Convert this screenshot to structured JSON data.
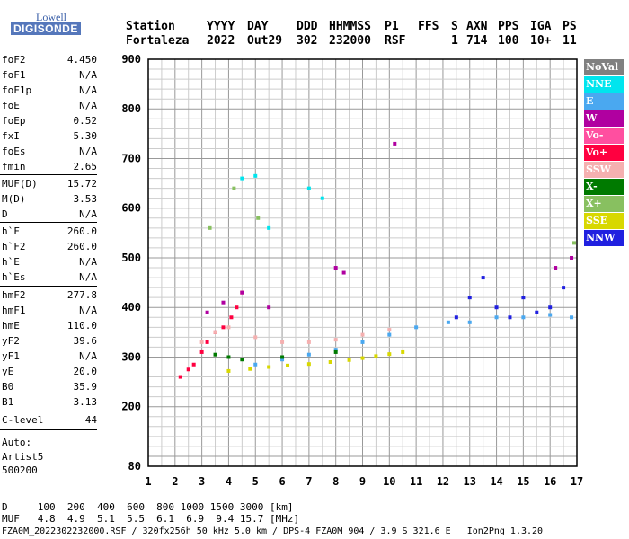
{
  "logo": {
    "top": "Lowell",
    "bottom": "DIGISONDE"
  },
  "header": {
    "labels": [
      "Station",
      "YYYY",
      "DAY",
      "DDD",
      "HHMMSS",
      "P1",
      "FFS",
      "S",
      "AXN",
      "PPS",
      "IGA",
      "PS"
    ],
    "values": [
      "Fortaleza",
      "2022",
      "Out29",
      "302",
      "232000",
      "RSF",
      "",
      "1",
      "714",
      "100",
      "10+",
      "11"
    ]
  },
  "params": [
    {
      "name": "foF2",
      "value": "4.450"
    },
    {
      "name": "foF1",
      "value": "N/A"
    },
    {
      "name": "foF1p",
      "value": "N/A"
    },
    {
      "name": "foE",
      "value": "N/A"
    },
    {
      "name": "foEp",
      "value": "0.52"
    },
    {
      "name": "fxI",
      "value": "5.30"
    },
    {
      "name": "foEs",
      "value": "N/A"
    },
    {
      "name": "fmin",
      "value": "2.65"
    },
    {
      "name": "MUF(D)",
      "value": "15.72"
    },
    {
      "name": "M(D)",
      "value": "3.53"
    },
    {
      "name": "D",
      "value": "N/A"
    },
    {
      "name": "h`F",
      "value": "260.0"
    },
    {
      "name": "h`F2",
      "value": "260.0"
    },
    {
      "name": "h`E",
      "value": "N/A"
    },
    {
      "name": "h`Es",
      "value": "N/A"
    },
    {
      "name": "hmF2",
      "value": "277.8"
    },
    {
      "name": "hmF1",
      "value": "N/A"
    },
    {
      "name": "hmE",
      "value": "110.0"
    },
    {
      "name": "yF2",
      "value": "39.6"
    },
    {
      "name": "yF1",
      "value": "N/A"
    },
    {
      "name": "yE",
      "value": "20.0"
    },
    {
      "name": "B0",
      "value": "35.9"
    },
    {
      "name": "B1",
      "value": "3.13"
    },
    {
      "name": "C-level",
      "value": "44"
    }
  ],
  "auto": {
    "line1": "Auto:",
    "line2": "Artist5",
    "line3": "500200"
  },
  "legend": [
    {
      "label": "NoVal",
      "color": "#808080"
    },
    {
      "label": "NNE",
      "color": "#00e5ee"
    },
    {
      "label": "E",
      "color": "#4aa8f0"
    },
    {
      "label": "W",
      "color": "#b000a0"
    },
    {
      "label": "Vo-",
      "color": "#ff4fa0"
    },
    {
      "label": "Vo+",
      "color": "#ff0040"
    },
    {
      "label": "SSW",
      "color": "#f5b0b0"
    },
    {
      "label": "X-",
      "color": "#007a00"
    },
    {
      "label": "X+",
      "color": "#88c060"
    },
    {
      "label": "SSE",
      "color": "#d8d800"
    },
    {
      "label": "NNW",
      "color": "#2020e0"
    }
  ],
  "footer": {
    "d_row": "D     100  200  400  600  800 1000 1500 3000 [km]",
    "muf_row": "MUF   4.8  4.9  5.1  5.5  6.1  6.9  9.4 15.7 [MHz]",
    "info_row": "FZA0M_2022302232000.RSF / 320fx256h 50 kHz 5.0 km / DPS-4 FZA0M 904 / 3.9 S 321.6 E   Ion2Png 1.3.20"
  },
  "chart_data": {
    "type": "scatter",
    "xlim": [
      1,
      17
    ],
    "ylim": [
      80,
      900
    ],
    "xticks": [
      "1",
      "2",
      "3",
      "4",
      "5",
      "6",
      "7",
      "8",
      "9",
      "10",
      "11",
      "12",
      "13",
      "14",
      "15",
      "16",
      "17"
    ],
    "yticks": [
      "80",
      "200",
      "300",
      "400",
      "500",
      "600",
      "700",
      "800",
      "900"
    ],
    "grid": true,
    "series": [
      {
        "color": "#ff0040",
        "x": [
          2.2,
          2.5,
          2.7,
          3.0,
          3.2,
          3.5,
          3.8,
          4.1,
          4.3,
          4.5
        ],
        "y": [
          260,
          275,
          285,
          310,
          330,
          350,
          360,
          380,
          400,
          430
        ]
      },
      {
        "color": "#d8d800",
        "x": [
          4.0,
          4.8,
          5.5,
          6.2,
          7.0,
          7.8,
          8.5,
          9.0,
          9.5,
          10.0,
          10.5
        ],
        "y": [
          272,
          276,
          280,
          283,
          286,
          290,
          294,
          298,
          302,
          306,
          310
        ]
      },
      {
        "color": "#4aa8f0",
        "x": [
          5.0,
          6.0,
          7.0,
          8.0,
          9.0,
          10.0,
          11.0,
          12.2,
          13.0,
          14.0,
          15.0,
          16.0,
          16.8
        ],
        "y": [
          285,
          295,
          305,
          315,
          330,
          345,
          360,
          370,
          370,
          380,
          380,
          385,
          380
        ]
      },
      {
        "color": "#f5b0b0",
        "x": [
          3.0,
          3.5,
          4.0,
          5.0,
          6.0,
          7.0,
          8.0,
          9.0,
          10.0
        ],
        "y": [
          330,
          350,
          360,
          340,
          330,
          330,
          335,
          345,
          355
        ]
      },
      {
        "color": "#2020e0",
        "x": [
          12.5,
          13.0,
          13.5,
          14.0,
          14.5,
          15.0,
          15.5,
          16.0,
          16.5
        ],
        "y": [
          380,
          420,
          460,
          400,
          380,
          420,
          390,
          400,
          440
        ]
      },
      {
        "color": "#b000a0",
        "x": [
          3.2,
          3.8,
          4.5,
          5.5,
          8.0,
          8.3,
          10.2,
          16.2,
          16.8
        ],
        "y": [
          390,
          410,
          430,
          400,
          480,
          470,
          730,
          480,
          500
        ]
      },
      {
        "color": "#007a00",
        "x": [
          3.5,
          4.0,
          4.5,
          6.0,
          8.0
        ],
        "y": [
          305,
          300,
          295,
          300,
          310
        ]
      },
      {
        "color": "#88c060",
        "x": [
          3.3,
          4.2,
          5.1,
          16.9
        ],
        "y": [
          560,
          640,
          580,
          530
        ]
      },
      {
        "color": "#00e5ee",
        "x": [
          4.5,
          5.0,
          5.5,
          7.0,
          7.5
        ],
        "y": [
          660,
          665,
          560,
          640,
          620
        ]
      }
    ]
  }
}
